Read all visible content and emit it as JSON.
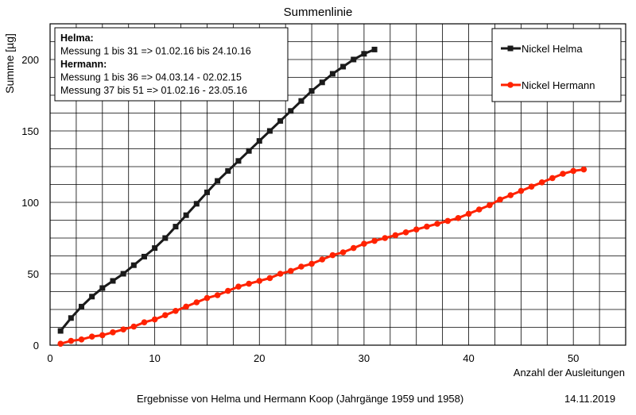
{
  "chart_data": {
    "type": "line",
    "title": "Summenlinie",
    "xlabel": "Anzahl der Ausleitungen",
    "ylabel": "Summe [µg]",
    "xlim": [
      0,
      55
    ],
    "ylim": [
      0,
      225
    ],
    "xticks": [
      0,
      10,
      20,
      30,
      40,
      50
    ],
    "yticks": [
      0,
      50,
      100,
      150,
      200
    ],
    "grid": true,
    "legend_position": "top-right",
    "annotation": {
      "lines": [
        {
          "text": "Helma:",
          "bold": true
        },
        {
          "text": "Messung 1 bis 31 => 01.02.16 bis 24.10.16",
          "bold": false
        },
        {
          "text": "Hermann:",
          "bold": true
        },
        {
          "text": "Messung 1 bis 36 => 04.03.14 - 02.02.15",
          "bold": false
        },
        {
          "text": "Messung 37 bis 51 => 01.02.16 - 23.05.16",
          "bold": false
        }
      ]
    },
    "series": [
      {
        "name": "Nickel Helma",
        "color": "#1a1a1a",
        "marker": "square",
        "x": [
          1,
          2,
          3,
          4,
          5,
          6,
          7,
          8,
          9,
          10,
          11,
          12,
          13,
          14,
          15,
          16,
          17,
          18,
          19,
          20,
          21,
          22,
          23,
          24,
          25,
          26,
          27,
          28,
          29,
          30,
          31
        ],
        "y": [
          10,
          19,
          27,
          34,
          40,
          45,
          50,
          56,
          62,
          68,
          75,
          83,
          91,
          99,
          107,
          115,
          122,
          129,
          136,
          143,
          150,
          157,
          164,
          171,
          178,
          184,
          190,
          195,
          200,
          204,
          207
        ]
      },
      {
        "name": "Nickel Hermann",
        "color": "#ff2200",
        "marker": "circle",
        "x": [
          1,
          2,
          3,
          4,
          5,
          6,
          7,
          8,
          9,
          10,
          11,
          12,
          13,
          14,
          15,
          16,
          17,
          18,
          19,
          20,
          21,
          22,
          23,
          24,
          25,
          26,
          27,
          28,
          29,
          30,
          31,
          32,
          33,
          34,
          35,
          36,
          37,
          38,
          39,
          40,
          41,
          42,
          43,
          44,
          45,
          46,
          47,
          48,
          49,
          50,
          51
        ],
        "y": [
          1,
          3,
          4,
          6,
          7,
          9,
          11,
          13,
          16,
          18,
          21,
          24,
          27,
          30,
          33,
          35,
          38,
          41,
          43,
          45,
          47,
          50,
          52,
          55,
          57,
          60,
          63,
          65,
          68,
          71,
          73,
          75,
          77,
          79,
          81,
          83,
          85,
          87,
          89,
          92,
          95,
          98,
          102,
          105,
          108,
          111,
          114,
          117,
          120,
          122,
          123
        ]
      }
    ]
  },
  "footer": {
    "caption": "Ergebnisse von Helma und Hermann Koop (Jahrgänge 1959 und 1958)",
    "date": "14.11.2019"
  }
}
